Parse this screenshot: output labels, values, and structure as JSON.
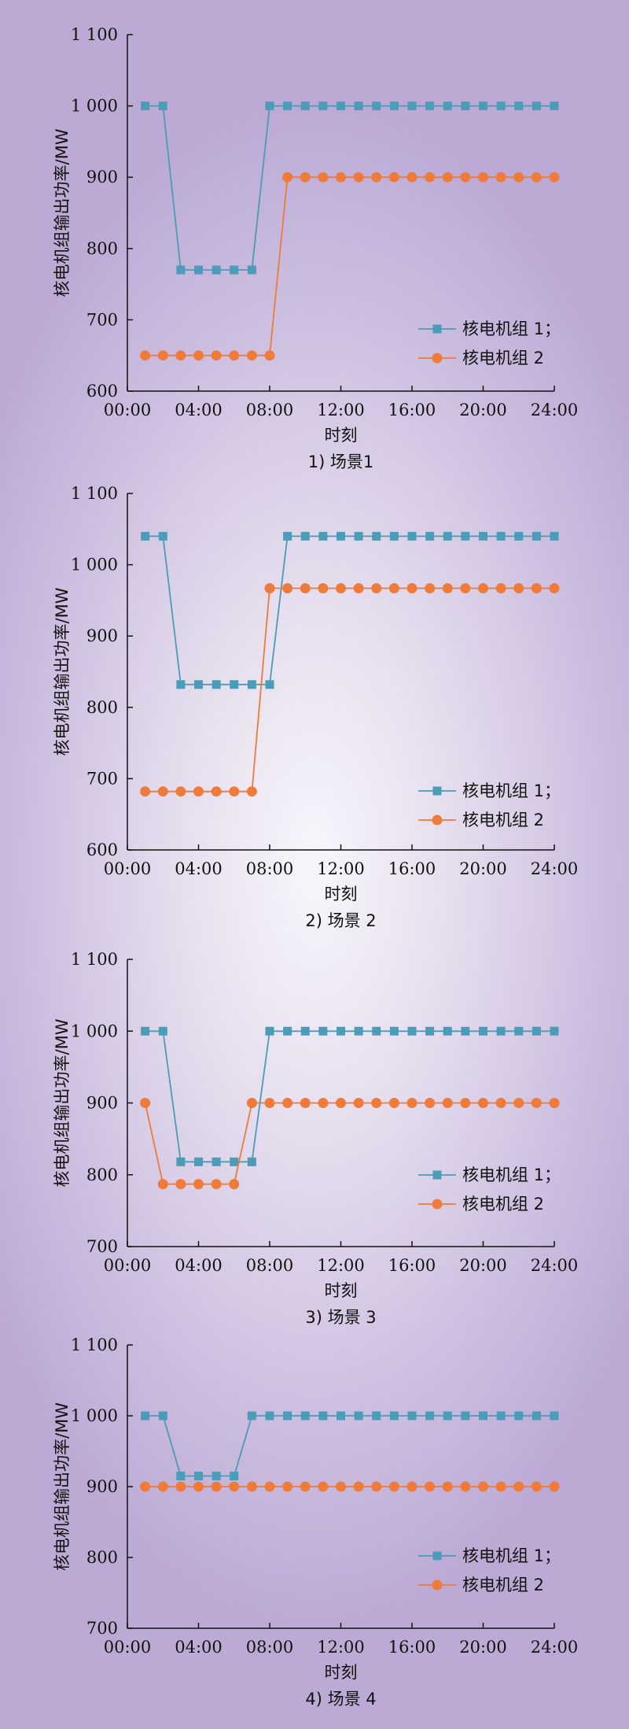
{
  "chart_data": [
    {
      "type": "line",
      "caption": "1) 场景1",
      "xlabel": "时刻",
      "ylabel": "核电机组输出功率/MW",
      "x_tick_labels": [
        "00:00",
        "04:00",
        "08:00",
        "12:00",
        "16:00",
        "20:00",
        "24:00"
      ],
      "y_tick_labels": [
        "1 100",
        "1 000",
        "900",
        "800",
        "700",
        "600"
      ],
      "xlim": [
        0,
        24
      ],
      "ylim": [
        600,
        1100
      ],
      "y_ticks": [
        1100,
        1000,
        900,
        800,
        700,
        600
      ],
      "x": [
        1,
        2,
        3,
        4,
        5,
        6,
        7,
        8,
        9,
        10,
        11,
        12,
        13,
        14,
        15,
        16,
        17,
        18,
        19,
        20,
        21,
        22,
        23,
        24
      ],
      "series": [
        {
          "name": "核电机组 1；",
          "color": "#4a9cb8",
          "marker": "square",
          "values": [
            1000,
            1000,
            770,
            770,
            770,
            770,
            770,
            1000,
            1000,
            1000,
            1000,
            1000,
            1000,
            1000,
            1000,
            1000,
            1000,
            1000,
            1000,
            1000,
            1000,
            1000,
            1000,
            1000
          ]
        },
        {
          "name": "核电机组 2",
          "color": "#ee7b3a",
          "marker": "circle",
          "values": [
            650,
            650,
            650,
            650,
            650,
            650,
            650,
            650,
            900,
            900,
            900,
            900,
            900,
            900,
            900,
            900,
            900,
            900,
            900,
            900,
            900,
            900,
            900,
            900
          ]
        }
      ],
      "legend_position": "lower-right"
    },
    {
      "type": "line",
      "caption": "2) 场景 2",
      "xlabel": "时刻",
      "ylabel": "核电机组输出功率/MW",
      "x_tick_labels": [
        "00:00",
        "04:00",
        "08:00",
        "12:00",
        "16:00",
        "20:00",
        "24:00"
      ],
      "y_tick_labels": [
        "1 100",
        "1 000",
        "900",
        "800",
        "700",
        "600"
      ],
      "xlim": [
        0,
        24
      ],
      "ylim": [
        600,
        1100
      ],
      "y_ticks": [
        1100,
        1000,
        900,
        800,
        700,
        600
      ],
      "x": [
        1,
        2,
        3,
        4,
        5,
        6,
        7,
        8,
        9,
        10,
        11,
        12,
        13,
        14,
        15,
        16,
        17,
        18,
        19,
        20,
        21,
        22,
        23,
        24
      ],
      "series": [
        {
          "name": "核电机组 1；",
          "color": "#4a9cb8",
          "marker": "square",
          "values": [
            1040,
            1040,
            832,
            832,
            832,
            832,
            832,
            832,
            1040,
            1040,
            1040,
            1040,
            1040,
            1040,
            1040,
            1040,
            1040,
            1040,
            1040,
            1040,
            1040,
            1040,
            1040,
            1040
          ]
        },
        {
          "name": "核电机组 2",
          "color": "#ee7b3a",
          "marker": "circle",
          "values": [
            682,
            682,
            682,
            682,
            682,
            682,
            682,
            967,
            967,
            967,
            967,
            967,
            967,
            967,
            967,
            967,
            967,
            967,
            967,
            967,
            967,
            967,
            967,
            967
          ]
        }
      ],
      "legend_position": "lower-right"
    },
    {
      "type": "line",
      "caption": "3) 场景 3",
      "xlabel": "时刻",
      "ylabel": "核电机组输出功率/MW",
      "x_tick_labels": [
        "00:00",
        "04:00",
        "08:00",
        "12:00",
        "16:00",
        "20:00",
        "24:00"
      ],
      "y_tick_labels": [
        "1 100",
        "1 000",
        "900",
        "800",
        "700"
      ],
      "xlim": [
        0,
        24
      ],
      "ylim": [
        700,
        1100
      ],
      "y_ticks": [
        1100,
        1000,
        900,
        800,
        700
      ],
      "x": [
        1,
        2,
        3,
        4,
        5,
        6,
        7,
        8,
        9,
        10,
        11,
        12,
        13,
        14,
        15,
        16,
        17,
        18,
        19,
        20,
        21,
        22,
        23,
        24
      ],
      "series": [
        {
          "name": "核电机组 1；",
          "color": "#4a9cb8",
          "marker": "square",
          "values": [
            1000,
            1000,
            818,
            818,
            818,
            818,
            818,
            1000,
            1000,
            1000,
            1000,
            1000,
            1000,
            1000,
            1000,
            1000,
            1000,
            1000,
            1000,
            1000,
            1000,
            1000,
            1000,
            1000
          ]
        },
        {
          "name": "核电机组 2",
          "color": "#ee7b3a",
          "marker": "circle",
          "values": [
            900,
            787,
            787,
            787,
            787,
            787,
            900,
            900,
            900,
            900,
            900,
            900,
            900,
            900,
            900,
            900,
            900,
            900,
            900,
            900,
            900,
            900,
            900,
            900
          ]
        }
      ],
      "legend_position": "lower-right"
    },
    {
      "type": "line",
      "caption": "4) 场景 4",
      "xlabel": "时刻",
      "ylabel": "核电机组输出功率/MW",
      "x_tick_labels": [
        "00:00",
        "04:00",
        "08:00",
        "12:00",
        "16:00",
        "20:00",
        "24:00"
      ],
      "y_tick_labels": [
        "1 100",
        "1 000",
        "900",
        "800",
        "700"
      ],
      "xlim": [
        0,
        24
      ],
      "ylim": [
        700,
        1100
      ],
      "y_ticks": [
        1100,
        1000,
        900,
        800,
        700
      ],
      "x": [
        1,
        2,
        3,
        4,
        5,
        6,
        7,
        8,
        9,
        10,
        11,
        12,
        13,
        14,
        15,
        16,
        17,
        18,
        19,
        20,
        21,
        22,
        23,
        24
      ],
      "series": [
        {
          "name": "核电机组 1；",
          "color": "#4a9cb8",
          "marker": "square",
          "values": [
            1000,
            1000,
            915,
            915,
            915,
            915,
            1000,
            1000,
            1000,
            1000,
            1000,
            1000,
            1000,
            1000,
            1000,
            1000,
            1000,
            1000,
            1000,
            1000,
            1000,
            1000,
            1000,
            1000
          ]
        },
        {
          "name": "核电机组 2",
          "color": "#ee7b3a",
          "marker": "circle",
          "values": [
            900,
            900,
            900,
            900,
            900,
            900,
            900,
            900,
            900,
            900,
            900,
            900,
            900,
            900,
            900,
            900,
            900,
            900,
            900,
            900,
            900,
            900,
            900,
            900
          ]
        }
      ],
      "legend_position": "lower-right"
    }
  ]
}
